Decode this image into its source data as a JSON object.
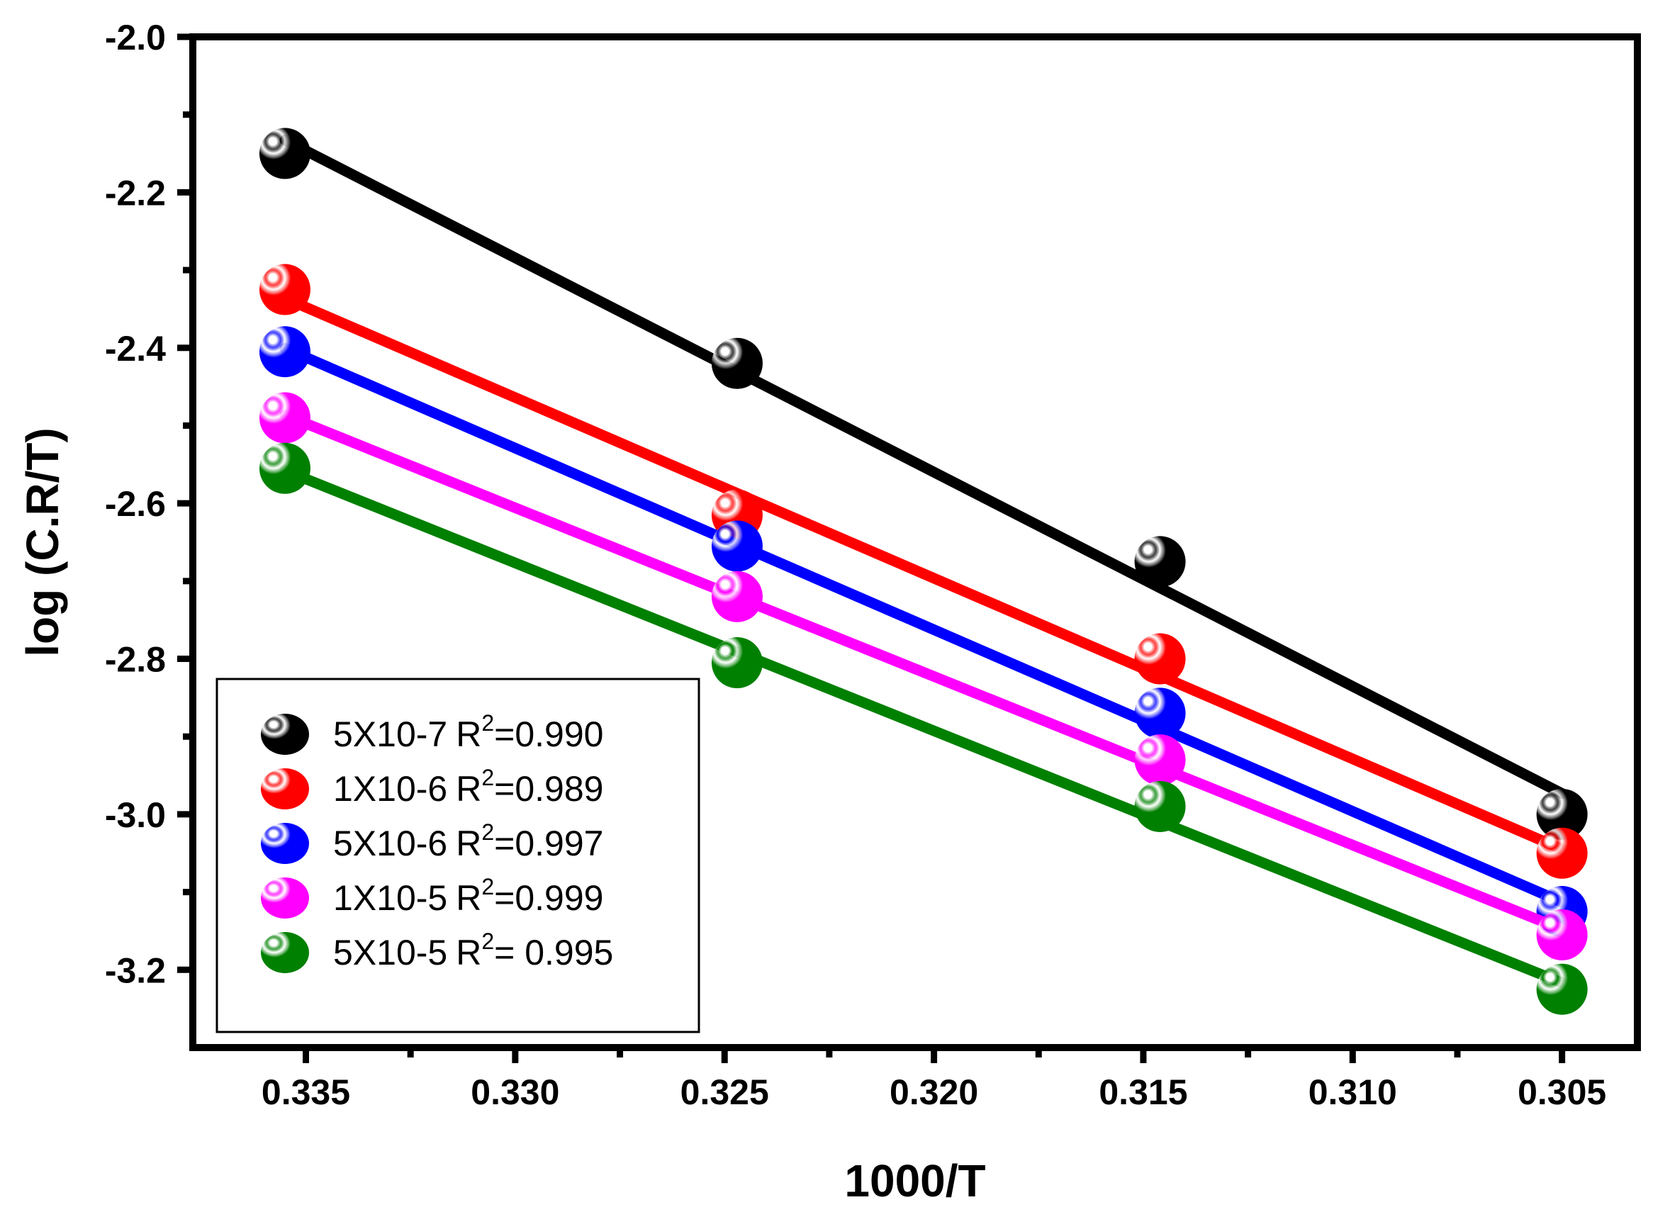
{
  "chart_data": {
    "type": "scatter",
    "title": "",
    "xlabel": "1000/T",
    "ylabel": "log (C.R/T)",
    "xlim": [
      0.3377,
      0.3032
    ],
    "ylim": [
      -3.3,
      -2.0
    ],
    "x_ticks": [
      "0.335",
      "0.330",
      "0.325",
      "0.320",
      "0.315",
      "0.310",
      "0.305"
    ],
    "x_tick_values": [
      0.335,
      0.33,
      0.325,
      0.32,
      0.315,
      0.31,
      0.305
    ],
    "y_ticks": [
      "-2.0",
      "-2.2",
      "-2.4",
      "-2.6",
      "-2.8",
      "-3.0",
      "-3.2"
    ],
    "y_tick_values": [
      -2.0,
      -2.2,
      -2.4,
      -2.6,
      -2.8,
      -3.0,
      -3.2
    ],
    "grid": false,
    "legend_position": "bottom-left",
    "x": [
      0.3355,
      0.3247,
      0.3146,
      0.305
    ],
    "series": [
      {
        "name": "5X10-7",
        "r2_label": "R",
        "r2_sup": "2",
        "r2_value": "=0.990",
        "color": "#000000",
        "values": [
          -2.15,
          -2.42,
          -2.675,
          -3.0
        ]
      },
      {
        "name": " 1X10-6",
        "r2_label": "R",
        "r2_sup": "2",
        "r2_value": "=0.989",
        "color": "#ff0000",
        "values": [
          -2.325,
          -2.615,
          -2.8,
          -3.05
        ]
      },
      {
        "name": " 5X10-6",
        "r2_label": "R",
        "r2_sup": "2",
        "r2_value": "=0.997",
        "color": "#0000ff",
        "values": [
          -2.405,
          -2.655,
          -2.87,
          -3.125
        ]
      },
      {
        "name": "1X10-5",
        "r2_label": "R",
        "r2_sup": "2",
        "r2_value": "=0.999",
        "color": "#ff00ff",
        "values": [
          -2.49,
          -2.72,
          -2.93,
          -3.155
        ]
      },
      {
        "name": " 5X10-5",
        "r2_label": "R",
        "r2_sup": "2",
        "r2_value": "= 0.995",
        "color": "#008000",
        "values": [
          -2.555,
          -2.805,
          -2.99,
          -3.225
        ]
      }
    ]
  }
}
